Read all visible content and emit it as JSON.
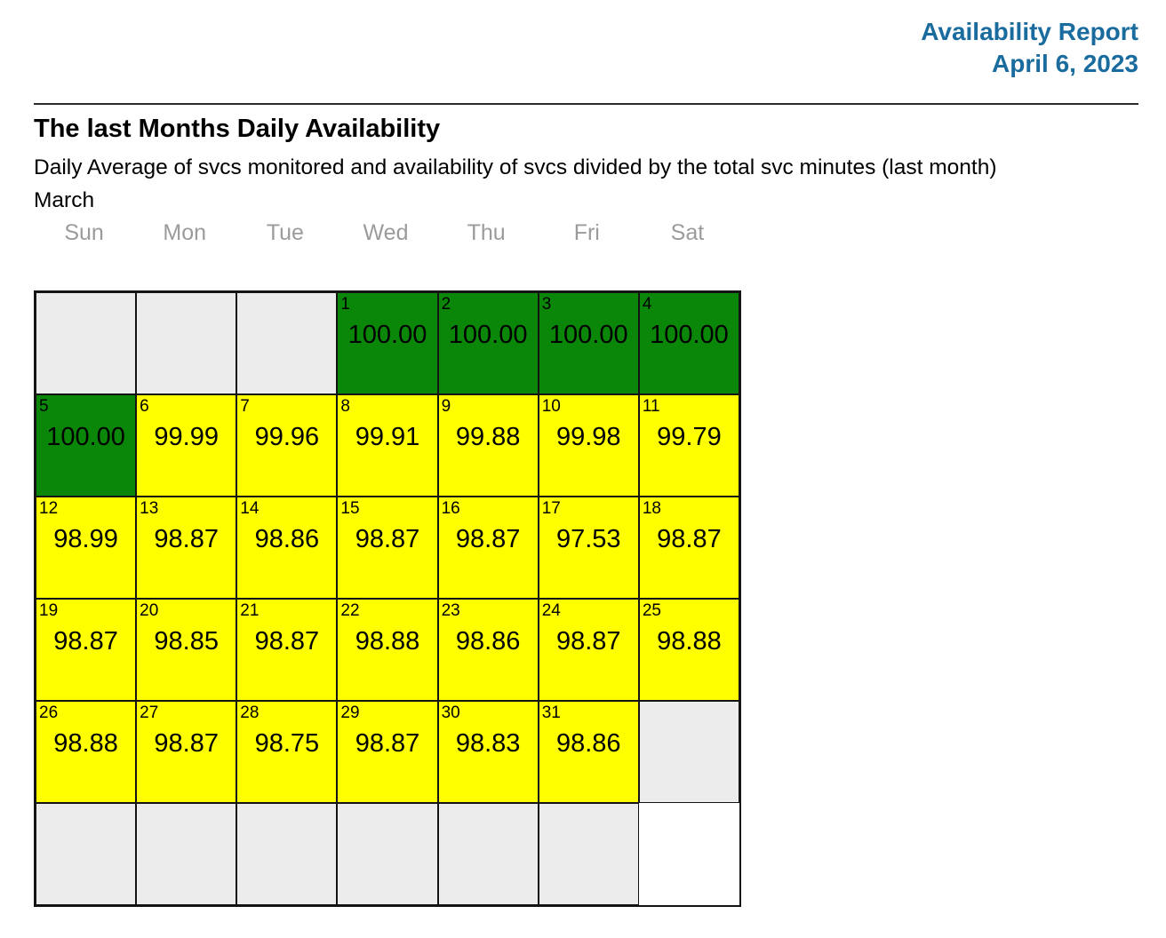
{
  "report": {
    "title": "Availability Report",
    "date": "April 6, 2023",
    "accent_color": "#1a6b9e"
  },
  "section": {
    "heading": "The last Months Daily Availability",
    "subtitle": "Daily Average of svcs monitored and availability of svcs divided by the total svc minutes (last month)",
    "month_label": "March"
  },
  "calendar": {
    "weekdays": [
      "Sun",
      "Mon",
      "Tue",
      "Wed",
      "Thu",
      "Fri",
      "Sat"
    ],
    "colors": {
      "green": "#0a8709",
      "yellow": "#ffff00",
      "empty": "#ececec"
    },
    "cells": [
      {
        "day": "",
        "value": "",
        "status": "empty"
      },
      {
        "day": "",
        "value": "",
        "status": "empty"
      },
      {
        "day": "",
        "value": "",
        "status": "empty"
      },
      {
        "day": "1",
        "value": "100.00",
        "status": "green"
      },
      {
        "day": "2",
        "value": "100.00",
        "status": "green"
      },
      {
        "day": "3",
        "value": "100.00",
        "status": "green"
      },
      {
        "day": "4",
        "value": "100.00",
        "status": "green"
      },
      {
        "day": "5",
        "value": "100.00",
        "status": "green"
      },
      {
        "day": "6",
        "value": "99.99",
        "status": "yellow"
      },
      {
        "day": "7",
        "value": "99.96",
        "status": "yellow"
      },
      {
        "day": "8",
        "value": "99.91",
        "status": "yellow"
      },
      {
        "day": "9",
        "value": "99.88",
        "status": "yellow"
      },
      {
        "day": "10",
        "value": "99.98",
        "status": "yellow"
      },
      {
        "day": "11",
        "value": "99.79",
        "status": "yellow"
      },
      {
        "day": "12",
        "value": "98.99",
        "status": "yellow"
      },
      {
        "day": "13",
        "value": "98.87",
        "status": "yellow"
      },
      {
        "day": "14",
        "value": "98.86",
        "status": "yellow"
      },
      {
        "day": "15",
        "value": "98.87",
        "status": "yellow"
      },
      {
        "day": "16",
        "value": "98.87",
        "status": "yellow"
      },
      {
        "day": "17",
        "value": "97.53",
        "status": "yellow"
      },
      {
        "day": "18",
        "value": "98.87",
        "status": "yellow"
      },
      {
        "day": "19",
        "value": "98.87",
        "status": "yellow"
      },
      {
        "day": "20",
        "value": "98.85",
        "status": "yellow"
      },
      {
        "day": "21",
        "value": "98.87",
        "status": "yellow"
      },
      {
        "day": "22",
        "value": "98.88",
        "status": "yellow"
      },
      {
        "day": "23",
        "value": "98.86",
        "status": "yellow"
      },
      {
        "day": "24",
        "value": "98.87",
        "status": "yellow"
      },
      {
        "day": "25",
        "value": "98.88",
        "status": "yellow"
      },
      {
        "day": "26",
        "value": "98.88",
        "status": "yellow"
      },
      {
        "day": "27",
        "value": "98.87",
        "status": "yellow"
      },
      {
        "day": "28",
        "value": "98.75",
        "status": "yellow"
      },
      {
        "day": "29",
        "value": "98.87",
        "status": "yellow"
      },
      {
        "day": "30",
        "value": "98.83",
        "status": "yellow"
      },
      {
        "day": "31",
        "value": "98.86",
        "status": "yellow"
      },
      {
        "day": "",
        "value": "",
        "status": "empty"
      },
      {
        "day": "",
        "value": "",
        "status": "empty"
      },
      {
        "day": "",
        "value": "",
        "status": "empty"
      },
      {
        "day": "",
        "value": "",
        "status": "empty"
      },
      {
        "day": "",
        "value": "",
        "status": "empty"
      },
      {
        "day": "",
        "value": "",
        "status": "empty"
      },
      {
        "day": "",
        "value": "",
        "status": "empty"
      }
    ]
  }
}
